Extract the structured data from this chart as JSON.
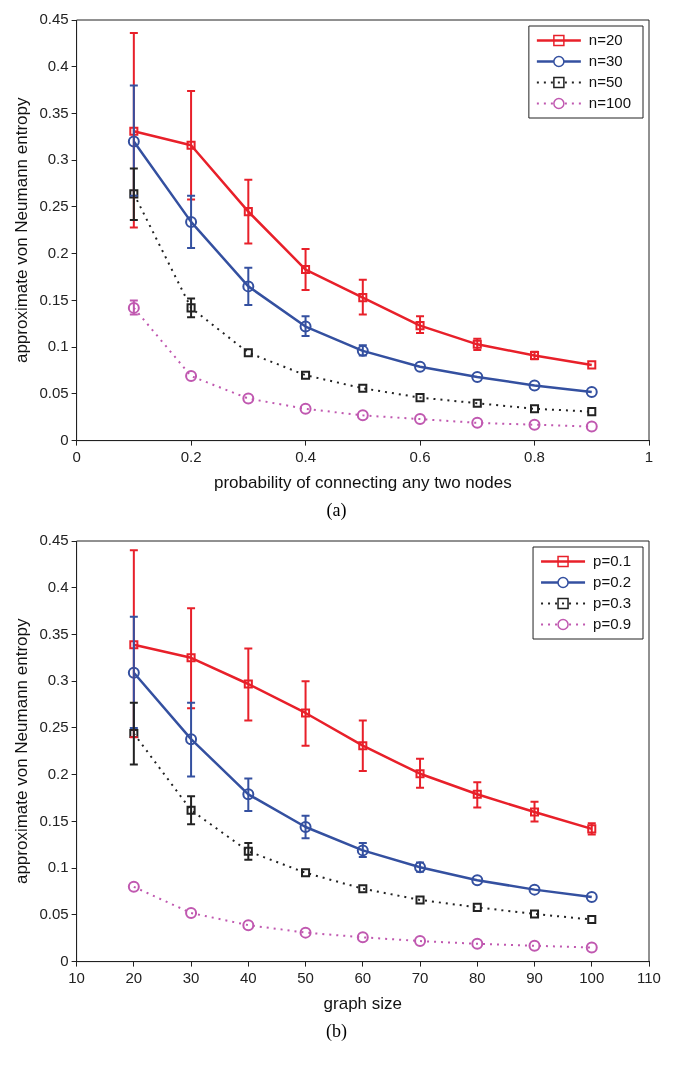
{
  "chart_data": [
    {
      "type": "line",
      "xlabel": "probability of connecting any two nodes",
      "ylabel": "approximate von Neumann entropy",
      "annotations": [
        "(a)"
      ],
      "x": [
        0.1,
        0.2,
        0.3,
        0.4,
        0.5,
        0.6,
        0.7,
        0.8,
        0.9
      ],
      "xlim": [
        0,
        1
      ],
      "xticks": [
        0,
        0.2,
        0.4,
        0.6,
        0.8,
        1
      ],
      "ylim": [
        0,
        0.45
      ],
      "yticks": [
        0,
        0.05,
        0.1,
        0.15,
        0.2,
        0.25,
        0.3,
        0.35,
        0.4,
        0.45
      ],
      "grid": false,
      "legend": "top right",
      "series": [
        {
          "name": "n=20",
          "color": "#e8202a",
          "marker": "square",
          "line_style": "solid",
          "values": [
            0.331,
            0.316,
            0.245,
            0.183,
            0.153,
            0.123,
            0.103,
            0.091,
            0.081
          ],
          "errors": [
            [
              0.228,
              0.436
            ],
            [
              0.258,
              0.374
            ],
            [
              0.211,
              0.279
            ],
            [
              0.161,
              0.205
            ],
            [
              0.135,
              0.172
            ],
            [
              0.115,
              0.133
            ],
            [
              0.097,
              0.109
            ],
            [
              0.087,
              0.095
            ],
            null
          ]
        },
        {
          "name": "n=30",
          "color": "#3450a0",
          "marker": "circle",
          "line_style": "solid",
          "values": [
            0.32,
            0.234,
            0.165,
            0.122,
            0.096,
            0.079,
            0.068,
            0.059,
            0.052
          ],
          "errors": [
            [
              0.262,
              0.38
            ],
            [
              0.206,
              0.262
            ],
            [
              0.145,
              0.185
            ],
            [
              0.112,
              0.133
            ],
            [
              0.091,
              0.102
            ],
            null,
            null,
            null,
            null
          ]
        },
        {
          "name": "n=50",
          "color": "#222222",
          "marker": "square",
          "line_style": "dotted",
          "values": [
            0.264,
            0.142,
            0.094,
            0.07,
            0.056,
            0.046,
            0.04,
            0.034,
            0.031
          ],
          "errors": [
            [
              0.236,
              0.291
            ],
            [
              0.132,
              0.152
            ],
            null,
            null,
            null,
            null,
            null,
            null,
            null
          ]
        },
        {
          "name": "n=100",
          "color": "#c058b0",
          "marker": "circle",
          "line_style": "dotted",
          "values": [
            0.142,
            0.069,
            0.045,
            0.034,
            0.027,
            0.023,
            0.019,
            0.017,
            0.015
          ],
          "errors": [
            [
              0.135,
              0.15
            ],
            null,
            null,
            null,
            null,
            null,
            null,
            null,
            null
          ]
        }
      ]
    },
    {
      "type": "line",
      "xlabel": "graph size",
      "ylabel": "approximate von Neumann entropy",
      "annotations": [
        "(b)"
      ],
      "x": [
        20,
        30,
        40,
        50,
        60,
        70,
        80,
        90,
        100
      ],
      "xlim": [
        10,
        110
      ],
      "xticks": [
        10,
        20,
        30,
        40,
        50,
        60,
        70,
        80,
        90,
        100,
        110
      ],
      "ylim": [
        0,
        0.45
      ],
      "yticks": [
        0,
        0.05,
        0.1,
        0.15,
        0.2,
        0.25,
        0.3,
        0.35,
        0.4,
        0.45
      ],
      "grid": false,
      "legend": "top right",
      "series": [
        {
          "name": "p=0.1",
          "color": "#e8202a",
          "marker": "square",
          "line_style": "solid",
          "values": [
            0.339,
            0.325,
            0.297,
            0.266,
            0.231,
            0.201,
            0.179,
            0.16,
            0.142
          ],
          "errors": [
            [
              0.24,
              0.44
            ],
            [
              0.271,
              0.378
            ],
            [
              0.258,
              0.335
            ],
            [
              0.231,
              0.3
            ],
            [
              0.204,
              0.258
            ],
            [
              0.186,
              0.217
            ],
            [
              0.165,
              0.192
            ],
            [
              0.15,
              0.171
            ],
            [
              0.136,
              0.148
            ]
          ]
        },
        {
          "name": "p=0.2",
          "color": "#3450a0",
          "marker": "circle",
          "line_style": "solid",
          "values": [
            0.309,
            0.238,
            0.179,
            0.144,
            0.119,
            0.101,
            0.087,
            0.077,
            0.069
          ],
          "errors": [
            [
              0.25,
              0.369
            ],
            [
              0.198,
              0.277
            ],
            [
              0.161,
              0.196
            ],
            [
              0.132,
              0.156
            ],
            [
              0.112,
              0.127
            ],
            [
              0.096,
              0.106
            ],
            null,
            null,
            null
          ]
        },
        {
          "name": "p=0.3",
          "color": "#222222",
          "marker": "square",
          "line_style": "dotted",
          "values": [
            0.244,
            0.162,
            0.118,
            0.095,
            0.078,
            0.066,
            0.058,
            0.051,
            0.045
          ],
          "errors": [
            [
              0.211,
              0.277
            ],
            [
              0.147,
              0.177
            ],
            [
              0.109,
              0.127
            ],
            null,
            null,
            null,
            null,
            null,
            null
          ]
        },
        {
          "name": "p=0.9",
          "color": "#c058b0",
          "marker": "circle",
          "line_style": "dotted",
          "values": [
            0.08,
            0.052,
            0.039,
            0.031,
            0.026,
            0.022,
            0.019,
            0.017,
            0.015
          ],
          "errors": [
            null,
            null,
            null,
            null,
            null,
            null,
            null,
            null,
            null
          ]
        }
      ]
    }
  ]
}
